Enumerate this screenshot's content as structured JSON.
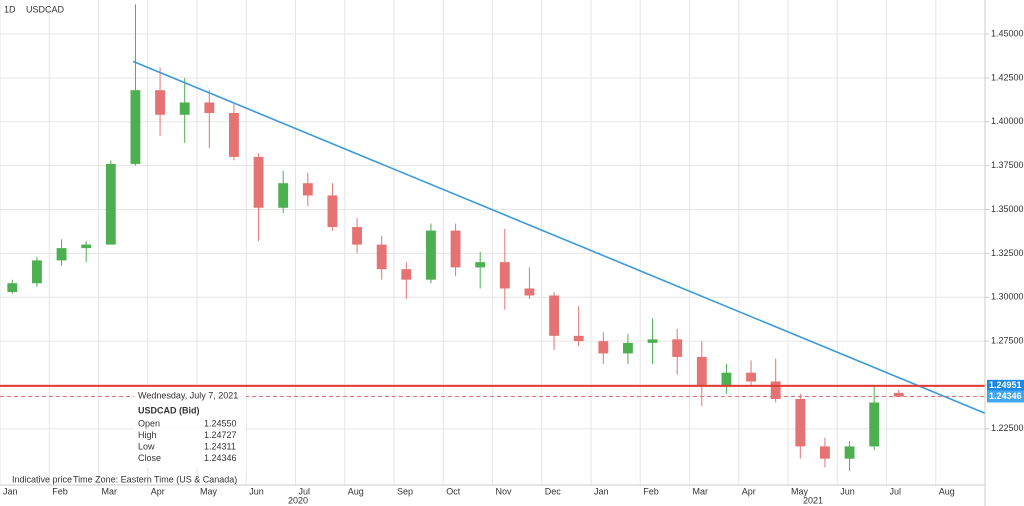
{
  "chart_data": {
    "type": "candlestick",
    "interval": "1D",
    "title": "USDCAD",
    "categories": [
      "Jan",
      null,
      "Feb",
      null,
      "Mar",
      null,
      "Apr",
      null,
      "May",
      null,
      "Jun",
      null,
      "Jul",
      null,
      "Aug",
      null,
      "Sep",
      null,
      "Oct",
      null,
      "Nov",
      null,
      "Dec",
      null,
      "Jan",
      null,
      "Feb",
      null,
      "Mar",
      null,
      "Apr",
      null,
      "May",
      null,
      "Jun",
      null,
      "Jul",
      null,
      "Aug",
      null
    ],
    "open": [
      1.303,
      1.308,
      1.321,
      1.328,
      1.33,
      1.376,
      1.418,
      1.404,
      1.411,
      1.405,
      1.38,
      1.351,
      1.365,
      1.358,
      1.34,
      1.33,
      1.316,
      1.31,
      1.338,
      1.317,
      1.32,
      1.305,
      1.301,
      1.278,
      1.275,
      1.268,
      1.274,
      1.276,
      1.266,
      1.25,
      1.257,
      1.252,
      1.242,
      1.215,
      1.208,
      1.215,
      1.2455,
      null,
      null,
      null
    ],
    "high": [
      1.31,
      1.323,
      1.333,
      1.332,
      1.378,
      1.467,
      1.431,
      1.425,
      1.418,
      1.41,
      1.382,
      1.372,
      1.371,
      1.365,
      1.345,
      1.335,
      1.32,
      1.342,
      1.342,
      1.326,
      1.339,
      1.317,
      1.303,
      1.295,
      1.28,
      1.279,
      1.288,
      1.282,
      1.275,
      1.262,
      1.264,
      1.265,
      1.245,
      1.22,
      1.218,
      1.25,
      1.24727,
      null,
      null,
      null
    ],
    "low": [
      1.302,
      1.306,
      1.318,
      1.32,
      1.33,
      1.375,
      1.392,
      1.388,
      1.385,
      1.378,
      1.332,
      1.348,
      1.352,
      1.338,
      1.325,
      1.31,
      1.299,
      1.308,
      1.312,
      1.305,
      1.293,
      1.299,
      1.27,
      1.272,
      1.262,
      1.262,
      1.262,
      1.256,
      1.238,
      1.245,
      1.249,
      1.24,
      1.208,
      1.203,
      1.201,
      1.213,
      1.24311,
      null,
      null,
      null
    ],
    "close": [
      1.308,
      1.321,
      1.328,
      1.33,
      1.376,
      1.418,
      1.404,
      1.411,
      1.405,
      1.38,
      1.351,
      1.365,
      1.358,
      1.34,
      1.33,
      1.316,
      1.31,
      1.338,
      1.317,
      1.32,
      1.305,
      1.301,
      1.278,
      1.275,
      1.268,
      1.274,
      1.276,
      1.266,
      1.25,
      1.257,
      1.252,
      1.242,
      1.215,
      1.208,
      1.215,
      1.24,
      1.24346,
      null,
      null,
      null
    ],
    "up_color": "#4caf50",
    "down_color": "#e57373",
    "years": [
      "2020",
      "2021"
    ],
    "ylim": [
      1.193,
      1.4694
    ],
    "yticks": [
      {
        "value": 1.225,
        "label": "1.22500"
      },
      {
        "value": 1.25,
        "label": "1.25000"
      },
      {
        "value": 1.275,
        "label": "1.27500"
      },
      {
        "value": 1.3,
        "label": "1.30000"
      },
      {
        "value": 1.325,
        "label": "1.32500"
      },
      {
        "value": 1.35,
        "label": "1.35000"
      },
      {
        "value": 1.375,
        "label": "1.37500"
      },
      {
        "value": 1.4,
        "label": "1.40000"
      },
      {
        "value": 1.425,
        "label": "1.42500"
      },
      {
        "value": 1.45,
        "label": "1.45000"
      }
    ],
    "grid": true,
    "trendline": {
      "from": 1.4344,
      "to": 1.2339,
      "color": "#3a9ad9"
    },
    "levels": [
      {
        "value": 1.24951,
        "label": "1.24951",
        "color": "#e53935",
        "style": "solid"
      },
      {
        "value": 1.24346,
        "label": "1.24346",
        "color": "#e57373",
        "style": "dashed"
      }
    ],
    "tooltip": {
      "date": "Wednesday, July 7, 2021",
      "symbol": "USDCAD (Bid)",
      "rows": [
        [
          "Open",
          "1.24550"
        ],
        [
          "High",
          "1.24727"
        ],
        [
          "Low",
          "1.24311"
        ],
        [
          "Close",
          "1.24346"
        ]
      ]
    },
    "footer": [
      "Indicative price",
      "Time Zone: Eastern Time (US & Canada)"
    ]
  }
}
